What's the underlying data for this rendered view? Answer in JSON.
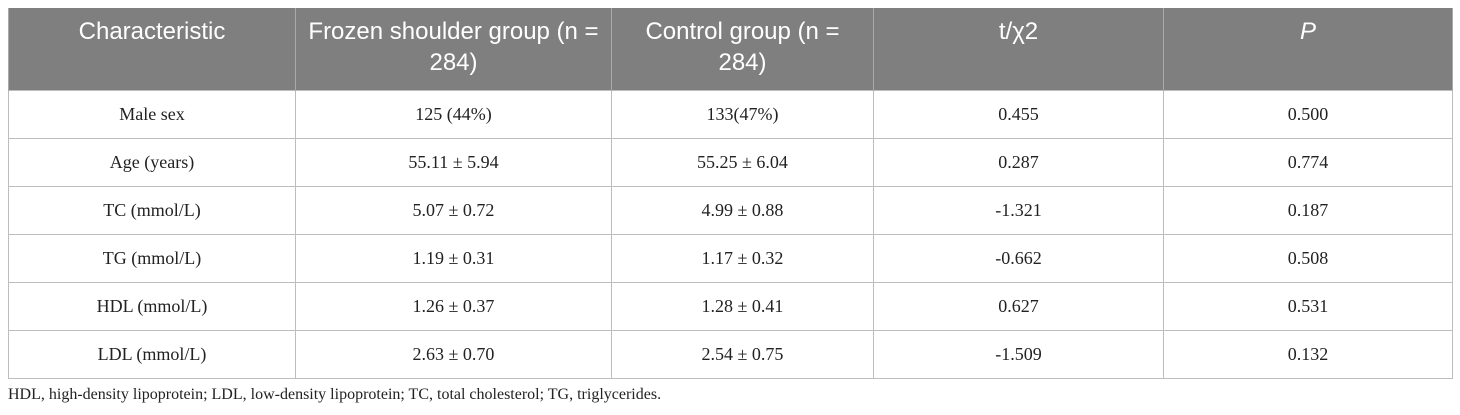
{
  "table": {
    "headers": [
      "Characteristic",
      "Frozen shoulder group (n = 284)",
      "Control group (n = 284)",
      "t/χ2",
      "P"
    ],
    "rows": [
      [
        "Male sex",
        "125 (44%)",
        "133(47%)",
        "0.455",
        "0.500"
      ],
      [
        "Age (years)",
        "55.11 ± 5.94",
        "55.25 ± 6.04",
        "0.287",
        "0.774"
      ],
      [
        "TC (mmol/L)",
        "5.07 ± 0.72",
        "4.99 ± 0.88",
        "-1.321",
        "0.187"
      ],
      [
        "TG (mmol/L)",
        "1.19 ± 0.31",
        "1.17 ± 0.32",
        "-0.662",
        "0.508"
      ],
      [
        "HDL (mmol/L)",
        "1.26 ± 0.37",
        "1.28 ± 0.41",
        "0.627",
        "0.531"
      ],
      [
        "LDL (mmol/L)",
        "2.63 ± 0.70",
        "2.54 ± 0.75",
        "-1.509",
        "0.132"
      ]
    ]
  },
  "footnote": "HDL, high-density lipoprotein; LDL, low-density lipoprotein; TC, total cholesterol; TG, triglycerides.",
  "colors": {
    "header_bg": "#7f7f7f",
    "header_text": "#ffffff",
    "border": "#bdbdbd"
  }
}
